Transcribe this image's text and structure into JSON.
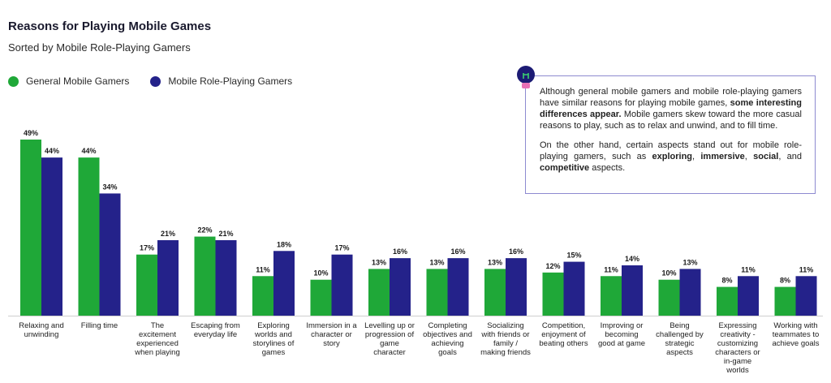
{
  "header": {
    "title": "Reasons for Playing Mobile Games",
    "subtitle": "Sorted by Mobile Role-Playing Gamers"
  },
  "legend": [
    {
      "label": "General Mobile Gamers",
      "color": "#1fa838"
    },
    {
      "label": "Mobile Role-Playing Gamers",
      "color": "#24228a"
    }
  ],
  "callout": {
    "icon": "lightbulb-icon",
    "p1_a": "Although general mobile gamers and mobile role-playing gamers have similar reasons for playing mobile games, ",
    "p1_bold": "some interesting differences appear.",
    "p1_b": " Mobile gamers skew toward the more casual reasons to play, such as to relax and unwind, and to fill time.",
    "p2_a": "On the other hand, certain aspects stand out for mobile role-playing gamers, such as ",
    "p2_b1": "exploring",
    "p2_c1": ", ",
    "p2_b2": "immersive",
    "p2_c2": ", ",
    "p2_b3": "social",
    "p2_c3": ", and ",
    "p2_b4": "competitive",
    "p2_c4": " aspects."
  },
  "chart_data": {
    "type": "bar",
    "title": "Reasons for Playing Mobile Games",
    "subtitle": "Sorted by Mobile Role-Playing Gamers",
    "ylim": [
      0,
      49
    ],
    "grid": false,
    "legend_position": "top-left",
    "categories": [
      [
        "Relaxing and",
        "unwinding"
      ],
      [
        "Filling time"
      ],
      [
        "The",
        "excitement",
        "experienced",
        "when playing"
      ],
      [
        "Escaping from",
        "everyday life"
      ],
      [
        "Exploring",
        "worlds and",
        "storylines of",
        "games"
      ],
      [
        "Immersion in a",
        "character or",
        "story"
      ],
      [
        "Levelling up or",
        "progression of",
        "game",
        "character"
      ],
      [
        "Completing",
        "objectives and",
        "achieving",
        "goals"
      ],
      [
        "Socializing",
        "with friends or",
        "family /",
        "making friends"
      ],
      [
        "Competition,",
        "enjoyment of",
        "beating others"
      ],
      [
        "Improving or",
        "becoming",
        "good at game"
      ],
      [
        "Being",
        "challenged by",
        "strategic",
        "aspects"
      ],
      [
        "Expressing",
        "creativity -",
        "customizing",
        "characters or",
        "in-game",
        "worlds"
      ],
      [
        "Working with",
        "teammates to",
        "achieve goals"
      ]
    ],
    "series": [
      {
        "name": "General Mobile Gamers",
        "color": "#1fa838",
        "values": [
          49,
          44,
          17,
          22,
          11,
          10,
          13,
          13,
          13,
          12,
          11,
          10,
          8,
          8
        ]
      },
      {
        "name": "Mobile Role-Playing Gamers",
        "color": "#24228a",
        "values": [
          44,
          34,
          21,
          21,
          18,
          17,
          16,
          16,
          16,
          15,
          14,
          13,
          11,
          11
        ]
      }
    ],
    "value_suffix": "%"
  }
}
